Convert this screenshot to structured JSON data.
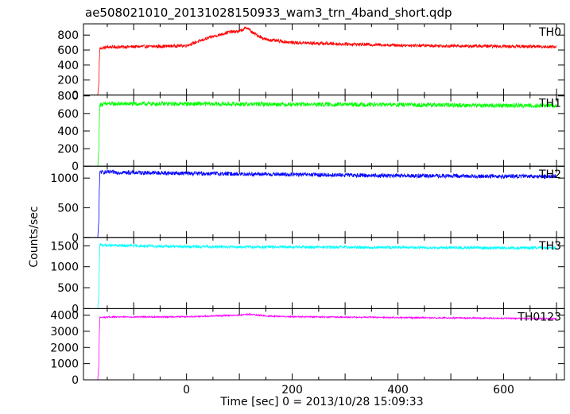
{
  "chart_data": {
    "type": "line",
    "title": "ae508021010_20131028150933_wam3_trn_4band_short.qdp",
    "xlabel": "Time [sec] 0 = 2013/10/28 15:09:33",
    "ylabel": "Counts/sec",
    "xlim": [
      -195,
      715
    ],
    "xticks": [
      0,
      200,
      400,
      600
    ],
    "xtick_labels": [
      "0",
      "200",
      "400",
      "600"
    ],
    "panels": [
      {
        "name": "TH0",
        "color": "#ff0000",
        "ylim": [
          0,
          950
        ],
        "yticks": [
          0,
          200,
          400,
          600,
          800
        ],
        "ytick_labels": [
          "0",
          "200",
          "400",
          "600",
          "800"
        ],
        "noise": 22,
        "x": [
          -168,
          -166,
          -165,
          -164,
          -150,
          -100,
          -50,
          0,
          20,
          50,
          80,
          100,
          115,
          125,
          150,
          200,
          300,
          400,
          500,
          600,
          700
        ],
        "values": [
          0,
          150,
          450,
          620,
          640,
          645,
          650,
          660,
          710,
          780,
          840,
          850,
          900,
          830,
          740,
          700,
          680,
          665,
          655,
          650,
          645
        ]
      },
      {
        "name": "TH1",
        "color": "#00ff00",
        "ylim": [
          0,
          810
        ],
        "yticks": [
          0,
          200,
          400,
          600,
          800
        ],
        "ytick_labels": [
          "0",
          "200",
          "400",
          "600",
          "800"
        ],
        "noise": 25,
        "x": [
          -168,
          -166,
          -165,
          -164,
          -150,
          0,
          200,
          400,
          600,
          700
        ],
        "values": [
          0,
          200,
          500,
          700,
          710,
          710,
          705,
          700,
          690,
          690
        ]
      },
      {
        "name": "TH2",
        "color": "#0000ff",
        "ylim": [
          0,
          1200
        ],
        "yticks": [
          0,
          500,
          1000
        ],
        "ytick_labels": [
          "0",
          "500",
          "1000"
        ],
        "noise": 35,
        "x": [
          -168,
          -166,
          -165,
          -164,
          -150,
          0,
          200,
          400,
          600,
          700
        ],
        "values": [
          0,
          280,
          800,
          1100,
          1100,
          1080,
          1060,
          1040,
          1030,
          1030
        ]
      },
      {
        "name": "TH3",
        "color": "#00ffff",
        "ylim": [
          0,
          1700
        ],
        "yticks": [
          0,
          500,
          1000,
          1500
        ],
        "ytick_labels": [
          "0",
          "500",
          "1000",
          "1500"
        ],
        "noise": 35,
        "x": [
          -168,
          -166,
          -165,
          -164,
          -150,
          0,
          200,
          400,
          600,
          700
        ],
        "values": [
          0,
          350,
          1000,
          1520,
          1510,
          1480,
          1470,
          1460,
          1450,
          1450
        ]
      },
      {
        "name": "TH0123",
        "color": "#ff00ff",
        "ylim": [
          0,
          4400
        ],
        "yticks": [
          0,
          1000,
          2000,
          3000,
          4000
        ],
        "ytick_labels": [
          "0",
          "1000",
          "2000",
          "3000",
          "4000"
        ],
        "noise": 45,
        "x": [
          -168,
          -166,
          -165,
          -164,
          -150,
          0,
          50,
          100,
          120,
          150,
          200,
          400,
          600,
          700
        ],
        "values": [
          0,
          900,
          2800,
          3850,
          3880,
          3900,
          3950,
          4000,
          4050,
          3950,
          3900,
          3850,
          3800,
          3780
        ]
      }
    ]
  }
}
